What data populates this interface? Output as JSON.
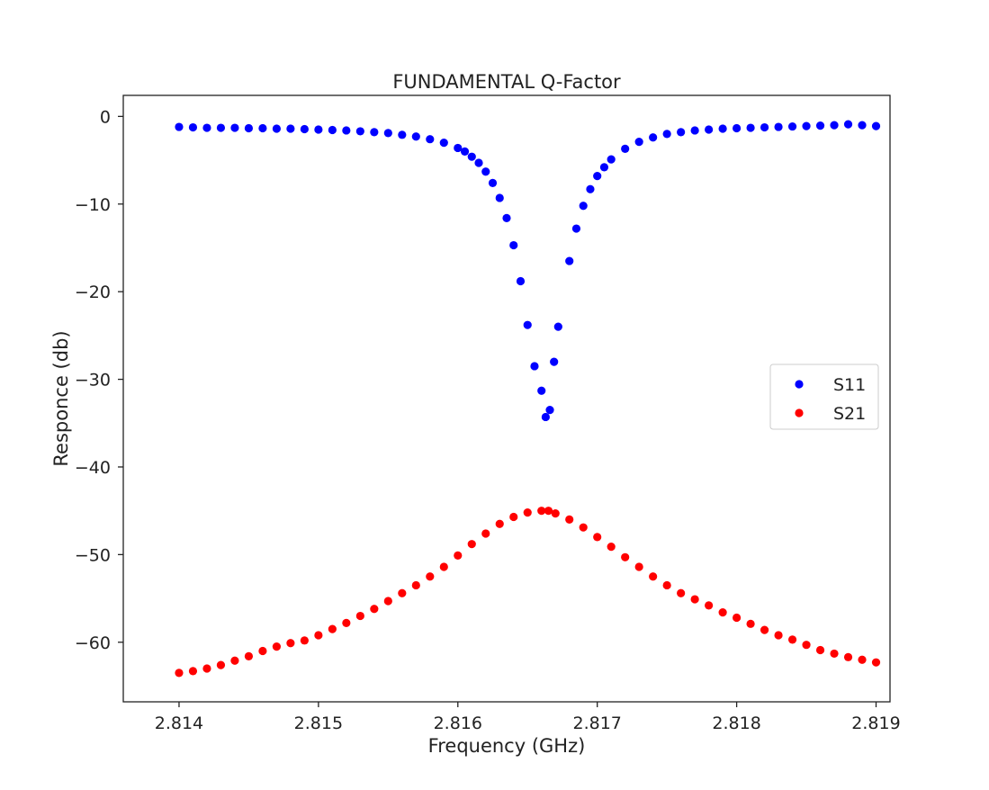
{
  "chart_data": {
    "type": "scatter",
    "title": "FUNDAMENTAL Q-Factor",
    "xlabel": "Frequency (GHz)",
    "ylabel": "Responce (db)",
    "xlim": [
      2.8136,
      2.8191
    ],
    "ylim": [
      -66.8,
      2.4
    ],
    "x_ticks": [
      2.814,
      2.815,
      2.816,
      2.817,
      2.818,
      2.819
    ],
    "x_tick_labels": [
      "2.814",
      "2.815",
      "2.816",
      "2.817",
      "2.818",
      "2.819"
    ],
    "y_ticks": [
      0,
      -10,
      -20,
      -30,
      -40,
      -50,
      -60
    ],
    "y_tick_labels": [
      "0",
      "−10",
      "−20",
      "−30",
      "−40",
      "−50",
      "−60"
    ],
    "grid": false,
    "legend_position": "center-right",
    "series": [
      {
        "name": "S11",
        "color": "#0000ff",
        "x": [
          2.814,
          2.8141,
          2.8142,
          2.8143,
          2.8144,
          2.8145,
          2.8146,
          2.8147,
          2.8148,
          2.8149,
          2.815,
          2.8151,
          2.8152,
          2.8153,
          2.8154,
          2.8155,
          2.8156,
          2.8157,
          2.8158,
          2.8159,
          2.816,
          2.81605,
          2.8161,
          2.81615,
          2.8162,
          2.81625,
          2.8163,
          2.81635,
          2.8164,
          2.81645,
          2.8165,
          2.81655,
          2.8166,
          2.81663,
          2.81666,
          2.81669,
          2.81672,
          2.8168,
          2.81685,
          2.8169,
          2.81695,
          2.817,
          2.81705,
          2.8171,
          2.8172,
          2.8173,
          2.8174,
          2.8175,
          2.8176,
          2.8177,
          2.8178,
          2.8179,
          2.818,
          2.8181,
          2.8182,
          2.8183,
          2.8184,
          2.8185,
          2.8186,
          2.8187,
          2.8188,
          2.8189,
          2.819
        ],
        "y": [
          -1.2,
          -1.25,
          -1.3,
          -1.3,
          -1.3,
          -1.35,
          -1.35,
          -1.4,
          -1.4,
          -1.45,
          -1.5,
          -1.55,
          -1.6,
          -1.7,
          -1.8,
          -1.9,
          -2.1,
          -2.3,
          -2.6,
          -3.0,
          -3.6,
          -4.0,
          -4.6,
          -5.3,
          -6.3,
          -7.6,
          -9.3,
          -11.6,
          -14.7,
          -18.8,
          -23.8,
          -28.5,
          -31.3,
          -34.3,
          -33.5,
          -28.0,
          -24.0,
          -16.5,
          -12.8,
          -10.2,
          -8.3,
          -6.8,
          -5.8,
          -4.9,
          -3.7,
          -2.9,
          -2.4,
          -2.0,
          -1.8,
          -1.6,
          -1.5,
          -1.4,
          -1.35,
          -1.3,
          -1.25,
          -1.2,
          -1.15,
          -1.1,
          -1.05,
          -1.0,
          -0.9,
          -1.0,
          -1.1
        ]
      },
      {
        "name": "S21",
        "color": "#ff0000",
        "x": [
          2.814,
          2.8141,
          2.8142,
          2.8143,
          2.8144,
          2.8145,
          2.8146,
          2.8147,
          2.8148,
          2.8149,
          2.815,
          2.8151,
          2.8152,
          2.8153,
          2.8154,
          2.8155,
          2.8156,
          2.8157,
          2.8158,
          2.8159,
          2.816,
          2.8161,
          2.8162,
          2.8163,
          2.8164,
          2.8165,
          2.8166,
          2.81665,
          2.8167,
          2.8168,
          2.8169,
          2.817,
          2.8171,
          2.8172,
          2.8173,
          2.8174,
          2.8175,
          2.8176,
          2.8177,
          2.8178,
          2.8179,
          2.818,
          2.8181,
          2.8182,
          2.8183,
          2.8184,
          2.8185,
          2.8186,
          2.8187,
          2.8188,
          2.8189,
          2.819
        ],
        "y": [
          -63.5,
          -63.3,
          -63.0,
          -62.6,
          -62.1,
          -61.6,
          -61.0,
          -60.5,
          -60.1,
          -59.8,
          -59.2,
          -58.5,
          -57.8,
          -57.0,
          -56.2,
          -55.3,
          -54.4,
          -53.5,
          -52.5,
          -51.4,
          -50.1,
          -48.8,
          -47.6,
          -46.5,
          -45.7,
          -45.2,
          -45.0,
          -45.0,
          -45.3,
          -46.0,
          -46.9,
          -48.0,
          -49.1,
          -50.3,
          -51.4,
          -52.5,
          -53.5,
          -54.4,
          -55.1,
          -55.8,
          -56.6,
          -57.2,
          -57.9,
          -58.6,
          -59.2,
          -59.7,
          -60.3,
          -60.9,
          -61.3,
          -61.7,
          -62.0,
          -62.3
        ]
      }
    ]
  }
}
